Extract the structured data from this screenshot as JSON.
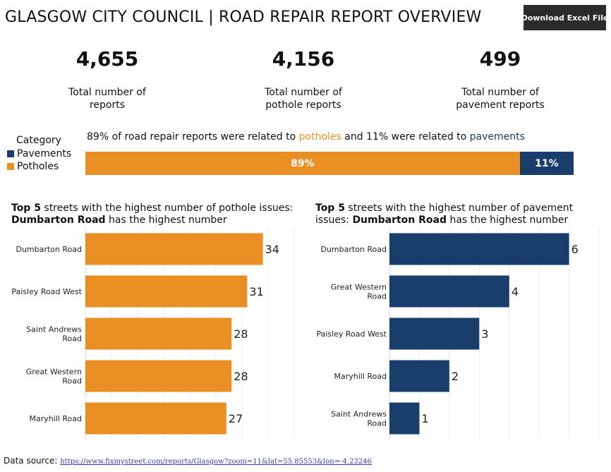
{
  "header": {
    "title": "GLASGOW CITY COUNCIL | ROAD REPAIR REPORT OVERVIEW",
    "download_label": "Download Excel File"
  },
  "kpis": [
    {
      "value": "4,655",
      "label": "Total number of\nreports"
    },
    {
      "value": "4,156",
      "label": "Total number of\npothole reports"
    },
    {
      "value": "499",
      "label": "Total number of\npavement reports"
    }
  ],
  "legend": {
    "title": "Category",
    "items": [
      {
        "label": "Pavements",
        "color": "#1a3e6b"
      },
      {
        "label": "Potholes",
        "color": "#e98f23"
      }
    ]
  },
  "summary": {
    "prefix": "89% of road repair reports were related to ",
    "potholes_word": "potholes",
    "middle": " and 11% were related to ",
    "pavements_word": "pavements"
  },
  "split": {
    "potholes_label": "89%",
    "pavements_label": "11%",
    "potholes_share": 0.89,
    "pavements_share": 0.11
  },
  "pothole_chart": {
    "title_bold1": "Top 5",
    "title_rest1": " streets with the highest number of pothole issues:",
    "title_bold2": "Dumbarton Road",
    "title_rest2": " has the highest number"
  },
  "pavement_chart": {
    "title_bold1": "Top 5",
    "title_rest1": " streets with the highest number of pavement",
    "title_rest1b": "issues: ",
    "title_bold2": "Dumbarton Road",
    "title_rest2": " has the highest number"
  },
  "colors": {
    "potholes": "#e98f23",
    "pavements": "#1a3e6b"
  },
  "chart_data": [
    {
      "type": "bar",
      "orientation": "horizontal",
      "categories": [
        "Dumbarton Road",
        "Paisley Road West",
        "Saint Andrews\nRoad",
        "Great Western\nRoad",
        "Maryhill Road"
      ],
      "values": [
        34,
        31,
        28,
        28,
        27
      ],
      "xlim": [
        0,
        40
      ],
      "grid": true,
      "color": "#e98f23"
    },
    {
      "type": "bar",
      "orientation": "horizontal",
      "categories": [
        "Dumbarton Road",
        "Great Western\nRoad",
        "Paisley Road West",
        "Maryhill Road",
        "Saint Andrews\nRoad"
      ],
      "values": [
        6,
        4,
        3,
        2,
        1
      ],
      "xlim": [
        0,
        7
      ],
      "grid": true,
      "color": "#1a3e6b"
    }
  ],
  "footer": {
    "label": "Data source:",
    "link": "https://www.fixmystreet.com/reports/Glasgow?zoom=11&lat=55.85553&lon=-4.23246"
  }
}
